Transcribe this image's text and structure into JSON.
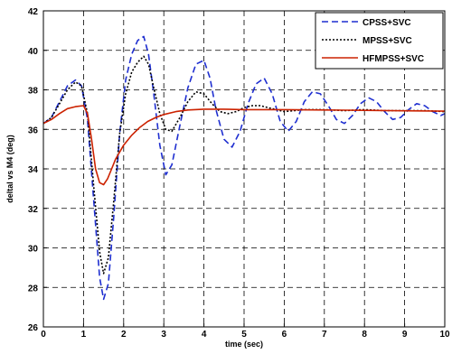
{
  "chart_data": {
    "type": "line",
    "xlabel": "time (sec)",
    "ylabel": "deltal vs M4 (deg)",
    "xlim": [
      0,
      10
    ],
    "ylim": [
      26,
      42
    ],
    "xticks": [
      0,
      1,
      2,
      3,
      4,
      5,
      6,
      7,
      8,
      9,
      10
    ],
    "yticks": [
      26,
      28,
      30,
      32,
      34,
      36,
      38,
      40,
      42
    ],
    "grid": "dashed",
    "legend_position": "top-right",
    "series": [
      {
        "name": "CPSS+SVC",
        "color": "#1f2fd0",
        "style": "dashed",
        "x": [
          0,
          0.2,
          0.4,
          0.6,
          0.8,
          0.95,
          1.1,
          1.25,
          1.4,
          1.5,
          1.62,
          1.75,
          1.9,
          2.05,
          2.2,
          2.35,
          2.5,
          2.62,
          2.75,
          2.9,
          3.05,
          3.2,
          3.4,
          3.6,
          3.8,
          4.0,
          4.15,
          4.3,
          4.5,
          4.7,
          4.9,
          5.1,
          5.3,
          5.5,
          5.7,
          5.9,
          6.1,
          6.3,
          6.5,
          6.7,
          6.9,
          7.1,
          7.3,
          7.5,
          7.7,
          7.9,
          8.1,
          8.3,
          8.5,
          8.7,
          8.9,
          9.1,
          9.3,
          9.5,
          9.7,
          9.9,
          10.0
        ],
        "values": [
          36.3,
          36.6,
          37.4,
          38.2,
          38.5,
          38.2,
          36.5,
          32.5,
          28.5,
          27.4,
          28.2,
          31.5,
          35.8,
          38.5,
          39.8,
          40.5,
          40.7,
          39.8,
          37.8,
          35.2,
          33.7,
          34.2,
          36.2,
          38.1,
          39.3,
          39.5,
          38.6,
          37.0,
          35.5,
          35.1,
          35.9,
          37.3,
          38.3,
          38.6,
          37.8,
          36.4,
          35.9,
          36.4,
          37.4,
          37.9,
          37.8,
          37.2,
          36.5,
          36.3,
          36.7,
          37.3,
          37.6,
          37.4,
          36.9,
          36.5,
          36.6,
          37.0,
          37.3,
          37.2,
          36.9,
          36.7,
          36.8
        ]
      },
      {
        "name": "MPSS+SVC",
        "color": "#000000",
        "style": "dotted",
        "x": [
          0,
          0.2,
          0.4,
          0.6,
          0.8,
          0.95,
          1.1,
          1.25,
          1.4,
          1.5,
          1.62,
          1.75,
          1.9,
          2.05,
          2.2,
          2.35,
          2.5,
          2.62,
          2.75,
          2.9,
          3.05,
          3.2,
          3.4,
          3.6,
          3.8,
          4.0,
          4.2,
          4.4,
          4.6,
          4.8,
          5.0,
          5.2,
          5.4,
          5.6,
          5.8,
          6.0,
          6.5,
          7.0,
          7.5,
          8.0,
          8.5,
          9.0,
          9.5,
          10.0
        ],
        "values": [
          36.3,
          36.6,
          37.3,
          38.0,
          38.4,
          38.2,
          36.8,
          33.2,
          29.8,
          28.7,
          29.5,
          32.3,
          35.8,
          37.8,
          38.9,
          39.4,
          39.7,
          39.3,
          38.1,
          36.8,
          36.0,
          35.9,
          36.6,
          37.4,
          37.9,
          37.8,
          37.3,
          36.9,
          36.8,
          36.9,
          37.1,
          37.2,
          37.2,
          37.1,
          37.0,
          36.9,
          37.0,
          37.0,
          36.95,
          37.0,
          36.95,
          36.95,
          36.95,
          36.9
        ]
      },
      {
        "name": "HFMPSS+SVC",
        "color": "#cc2200",
        "style": "solid",
        "x": [
          0,
          0.2,
          0.4,
          0.6,
          0.8,
          1.0,
          1.1,
          1.2,
          1.3,
          1.4,
          1.5,
          1.6,
          1.7,
          1.8,
          2.0,
          2.2,
          2.4,
          2.6,
          2.8,
          3.0,
          3.3,
          3.6,
          4.0,
          4.5,
          5.0,
          6.0,
          7.0,
          8.0,
          9.0,
          10.0
        ],
        "values": [
          36.3,
          36.5,
          36.8,
          37.05,
          37.15,
          37.2,
          36.8,
          35.5,
          34.0,
          33.3,
          33.2,
          33.5,
          34.0,
          34.5,
          35.2,
          35.7,
          36.1,
          36.4,
          36.6,
          36.75,
          36.9,
          36.98,
          37.02,
          37.02,
          37.0,
          37.0,
          36.98,
          36.96,
          36.94,
          36.92
        ]
      }
    ]
  }
}
